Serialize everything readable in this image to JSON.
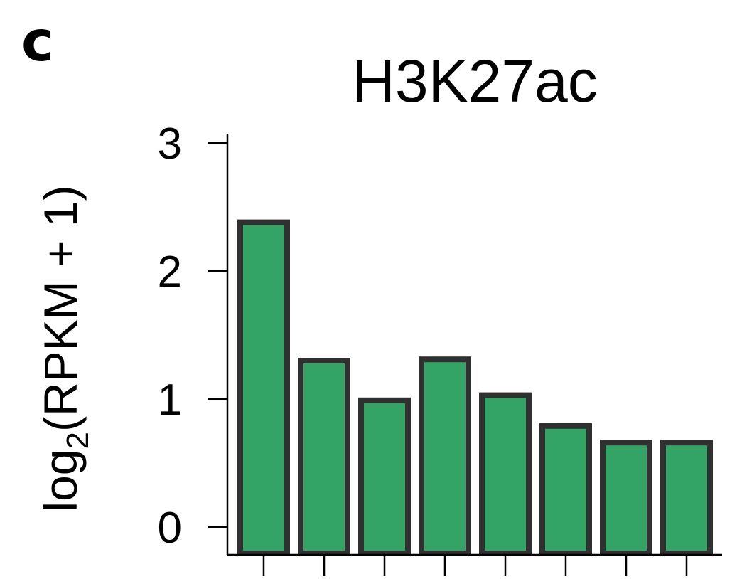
{
  "panel_label": "c",
  "chart_data": {
    "type": "bar",
    "title": "H3K27ac",
    "ylabel_main": "log",
    "ylabel_sub": "2",
    "ylabel_rest": "(RPKM + 1)",
    "xlabel": "",
    "categories": [
      "",
      "",
      "",
      "",
      "",
      "",
      "",
      ""
    ],
    "values": [
      2.38,
      1.3,
      0.99,
      1.31,
      1.03,
      0.79,
      0.66,
      0.66
    ],
    "ylim": [
      -0.22,
      3.1
    ],
    "yticks": [
      0,
      1,
      2,
      3
    ],
    "ytick_labels": [
      "0",
      "1",
      "2",
      "3"
    ],
    "grid": false,
    "legend": "none",
    "colors": {
      "bar_fill": "#33a466",
      "bar_edge": "#303030"
    }
  }
}
